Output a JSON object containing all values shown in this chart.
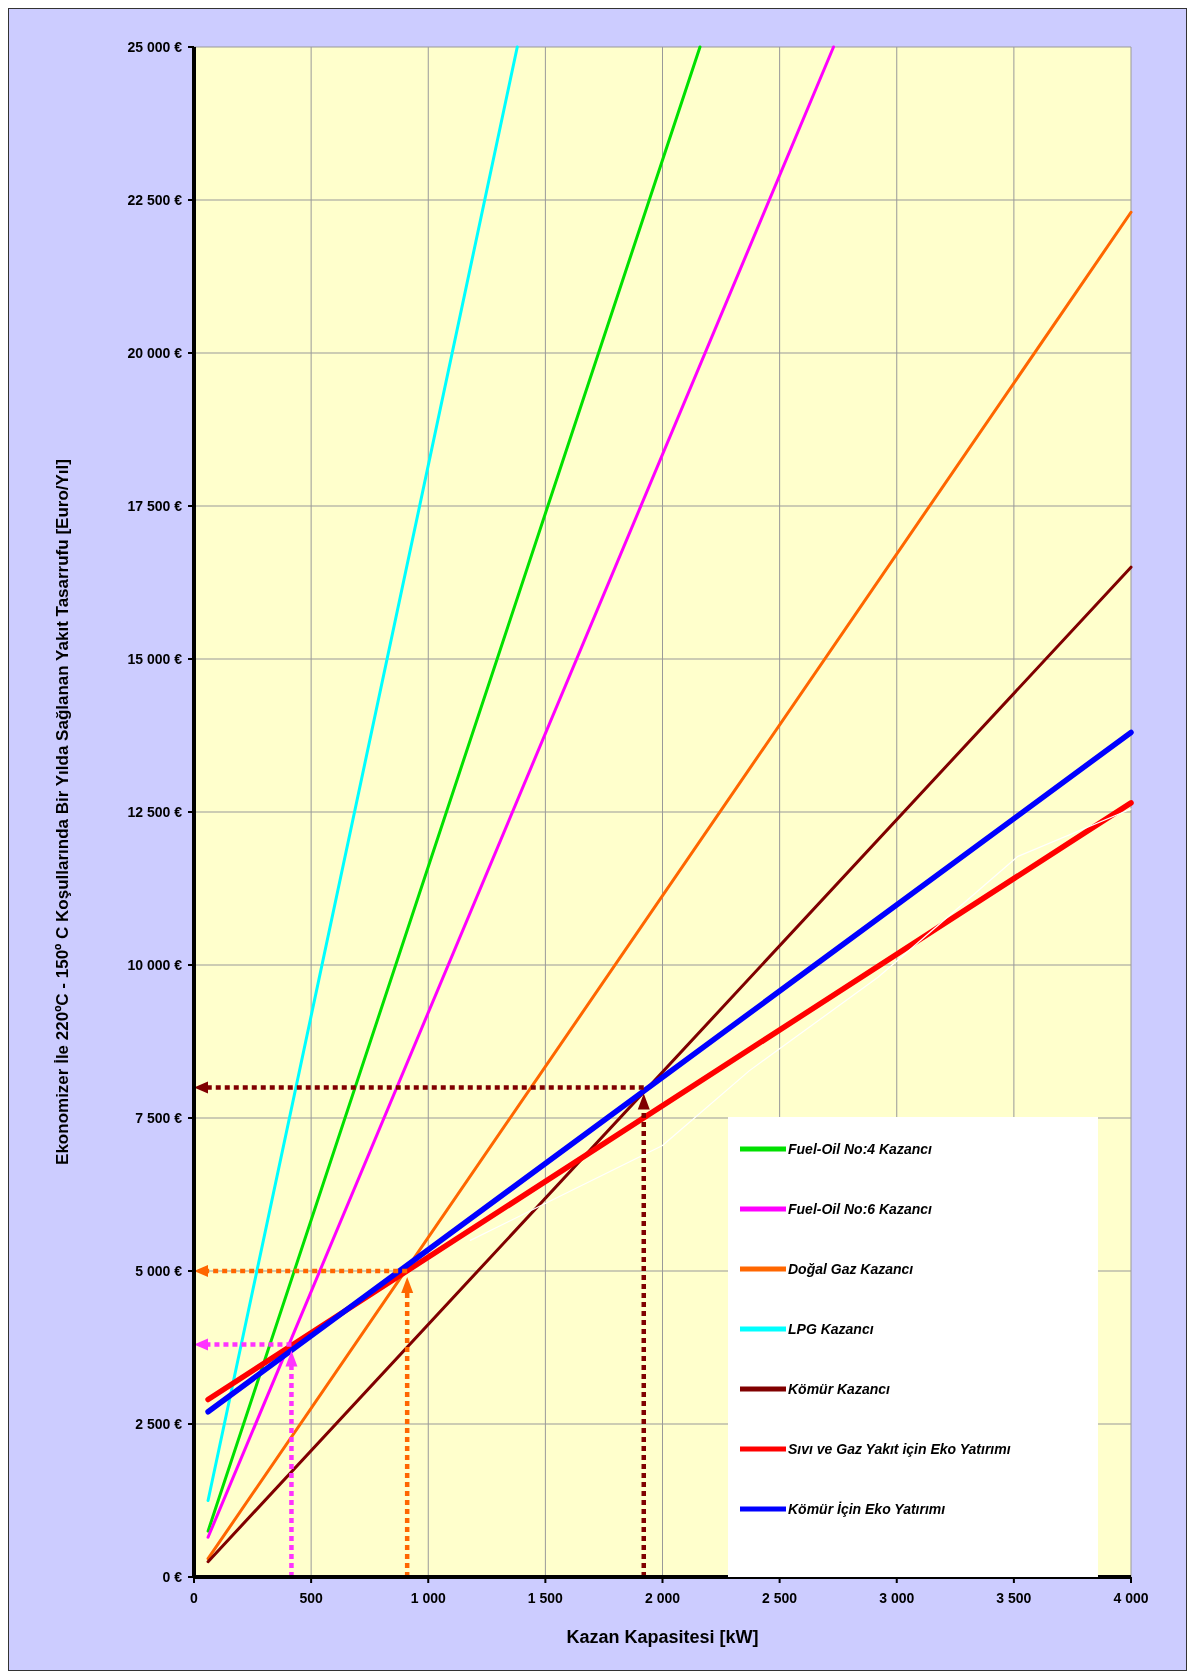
{
  "chart_data": {
    "type": "line",
    "xlabel": "Kazan Kapasitesi  [kW]",
    "ylabel": "Ekonomizer İle 220ºC - 150º C Koşullarında Bir Yılda Sağlanan Yakıt Tasarrufu  [Euro/Yıl]",
    "xlim": [
      0,
      4000
    ],
    "ylim": [
      0,
      25000
    ],
    "xticks": [
      0,
      500,
      {
        "value": 1000,
        "label": "1 000"
      },
      {
        "value": 1500,
        "label": "1 500"
      },
      {
        "value": 2000,
        "label": "2 000"
      },
      {
        "value": 2500,
        "label": "2 500"
      },
      {
        "value": 3000,
        "label": "3 000"
      },
      {
        "value": 3500,
        "label": "3 500"
      },
      {
        "value": 4000,
        "label": "4 000"
      }
    ],
    "yticks": [
      {
        "value": 0,
        "label": "0 €"
      },
      {
        "value": 2500,
        "label": "2 500 €"
      },
      {
        "value": 5000,
        "label": "5 000 €"
      },
      {
        "value": 7500,
        "label": "7 500 €"
      },
      {
        "value": 10000,
        "label": "10 000 €"
      },
      {
        "value": 12500,
        "label": "12 500 €"
      },
      {
        "value": 15000,
        "label": "15 000 €"
      },
      {
        "value": 17500,
        "label": "17 500 €"
      },
      {
        "value": 20000,
        "label": "20 000 €"
      },
      {
        "value": 22500,
        "label": "22 500 €"
      },
      {
        "value": 25000,
        "label": "25 000 €"
      }
    ],
    "grid": true,
    "legend": "bottom right",
    "line_style": "solid",
    "ref_lines": [
      {
        "axis": "y",
        "value": 8000,
        "color": "#800000",
        "line_style": "dotted"
      },
      {
        "axis": "x",
        "value": 1920,
        "color": "#800000",
        "line_style": "dotted"
      },
      {
        "axis": "y",
        "value": 5000,
        "color": "#ff6600",
        "line_style": "dotted"
      },
      {
        "axis": "x",
        "value": 910,
        "color": "#ff6600",
        "line_style": "dotted"
      },
      {
        "axis": "y",
        "value": 3800,
        "color": "#ff33ff",
        "line_style": "dotted"
      },
      {
        "axis": "x",
        "value": 416,
        "color": "#ff33ff",
        "line_style": "dotted"
      }
    ],
    "series": [
      {
        "name": "Fuel-Oil No:4 Kazancı",
        "color": "#00e000",
        "x": [
          60,
          2160
        ],
        "values": [
          750,
          25000
        ]
      },
      {
        "name": "Fuel-Oil No:6 Kazancı",
        "color": "#ff00ff",
        "x": [
          60,
          2730
        ],
        "values": [
          650,
          25000
        ]
      },
      {
        "name": "Doğal Gaz Kazancı",
        "color": "#ff6600",
        "x": [
          60,
          4000
        ],
        "values": [
          300,
          22300
        ]
      },
      {
        "name": "LPG Kazancı",
        "color": "#00ffff",
        "x": [
          60,
          1380
        ],
        "values": [
          1250,
          25000
        ]
      },
      {
        "name": "Kömür Kazancı",
        "color": "#800000",
        "x": [
          60,
          4000
        ],
        "values": [
          250,
          16500
        ]
      },
      {
        "name": "Sıvı ve Gaz Yakıt için Eko Yatırımı",
        "color": "#ff0000",
        "x": [
          60,
          4000
        ],
        "values": [
          2900,
          12650
        ]
      },
      {
        "name": "Kömür İçin Eko Yatırımı",
        "color": "#0000ff",
        "x": [
          60,
          4000
        ],
        "values": [
          2700,
          13800
        ]
      },
      {
        "color": "#ffffff",
        "x": [
          1180,
          2000,
          2370,
          2920,
          3515,
          4000
        ],
        "values": [
          5500,
          7050,
          8270,
          9800,
          11770,
          12550
        ]
      }
    ]
  }
}
